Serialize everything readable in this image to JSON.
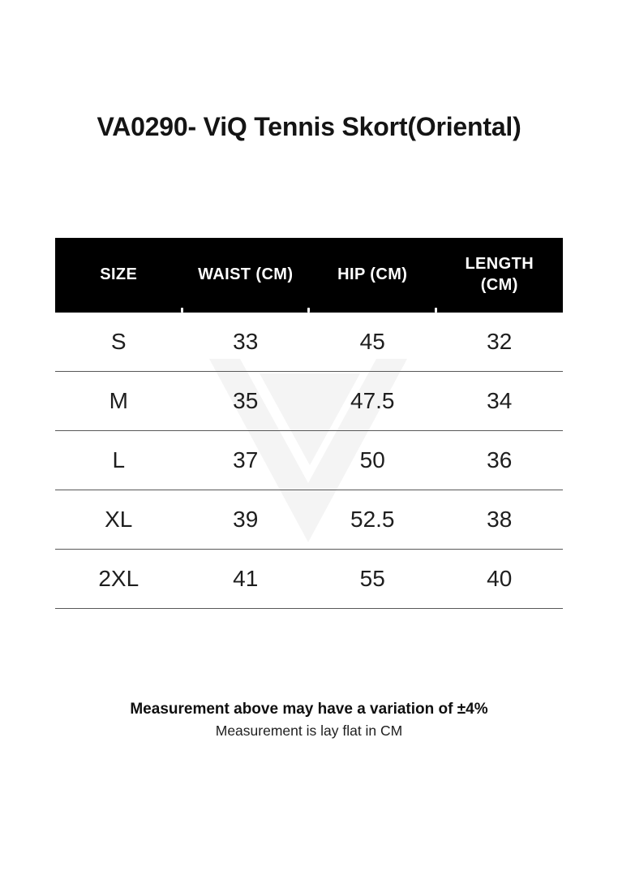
{
  "page_title": "VA0290- ViQ Tennis Skort(Oriental)",
  "size_chart": {
    "columns": [
      "SIZE",
      "WAIST (CM)",
      "HIP (CM)",
      "LENGTH (CM)"
    ],
    "rows": [
      [
        "S",
        "33",
        "45",
        "32"
      ],
      [
        "M",
        "35",
        "47.5",
        "34"
      ],
      [
        "L",
        "37",
        "50",
        "36"
      ],
      [
        "XL",
        "39",
        "52.5",
        "38"
      ],
      [
        "2XL",
        "41",
        "55",
        "40"
      ]
    ]
  },
  "chart_data": {
    "type": "table",
    "title": "VA0290- ViQ Tennis Skort(Oriental)",
    "columns": [
      "SIZE",
      "WAIST (CM)",
      "HIP (CM)",
      "LENGTH (CM)"
    ],
    "rows": [
      [
        "S",
        33,
        45,
        32
      ],
      [
        "M",
        35,
        47.5,
        34
      ],
      [
        "L",
        37,
        50,
        36
      ],
      [
        "XL",
        39,
        52.5,
        38
      ],
      [
        "2XL",
        41,
        55,
        40
      ]
    ]
  },
  "footnotes": {
    "variation": "Measurement above may have a variation of ±4%",
    "lay_flat": "Measurement is lay flat in CM"
  },
  "watermark": {
    "icon": "viq-v-logo"
  },
  "colors": {
    "header_bg": "#000000",
    "header_text": "#ffffff",
    "body_text": "#1e1e1e",
    "divider": "#585858",
    "watermark": "#f4f4f4"
  }
}
